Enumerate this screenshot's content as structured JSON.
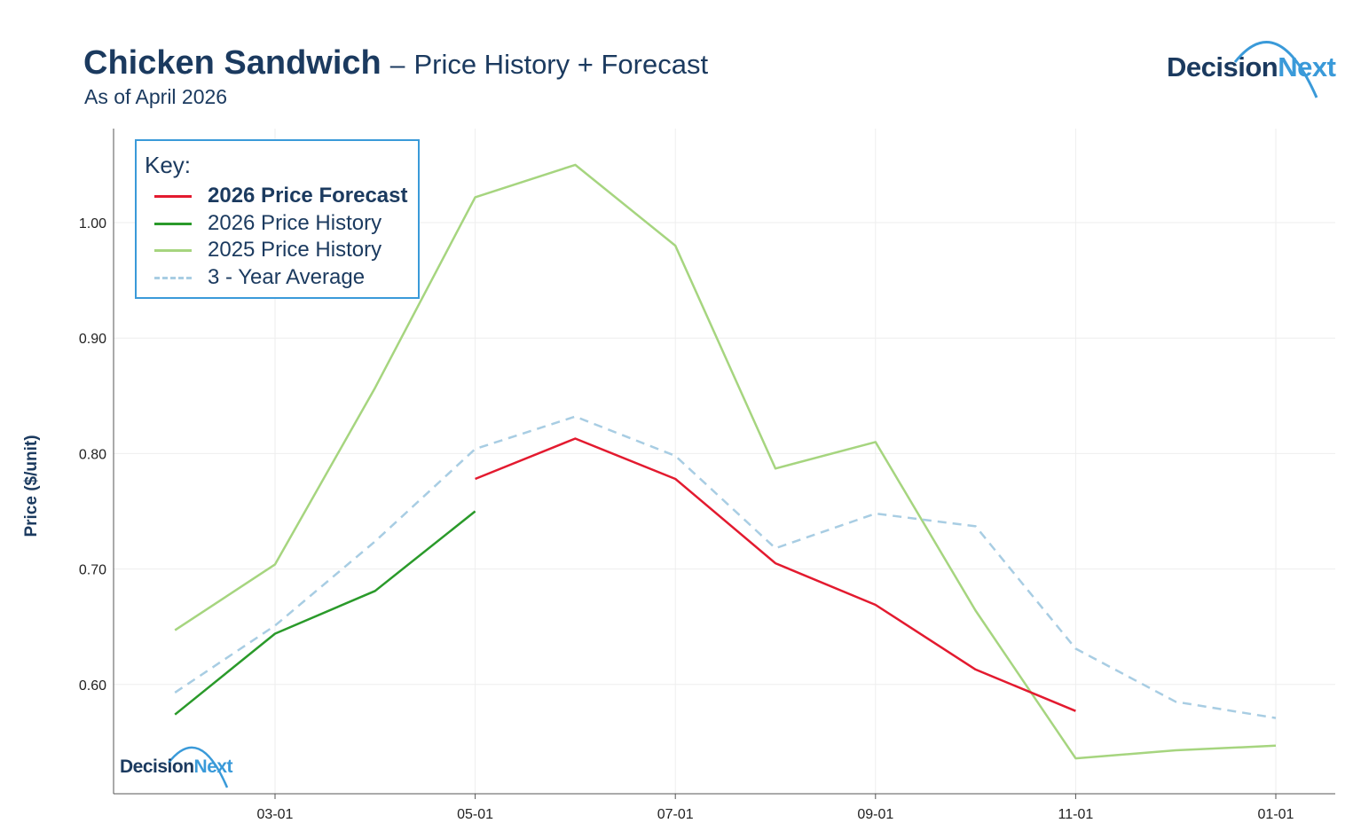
{
  "header": {
    "title_main": "Chicken Sandwich",
    "title_sep": "–",
    "title_sub": "Price History + Forecast",
    "as_of": "As of April 2026"
  },
  "logo": {
    "part1": "Decision",
    "part2": "Next"
  },
  "legend": {
    "title": "Key:",
    "items": [
      {
        "label": "2026 Price Forecast",
        "color": "#e31a2f"
      },
      {
        "label": "2026 Price History",
        "color": "#2a9a2a"
      },
      {
        "label": "2025 Price History",
        "color": "#a6d57f"
      },
      {
        "label": "3 - Year Average",
        "color": "#a8cde3"
      }
    ]
  },
  "chart_data": {
    "type": "line",
    "title": "Chicken Sandwich – Price History + Forecast",
    "subtitle": "As of April 2026",
    "xlabel": "",
    "ylabel": "Price ($/unit)",
    "x_note": "month number, 13 = January of following year",
    "xlim": [
      1.5,
      14.2
    ],
    "ylim": [
      0.505,
      1.08
    ],
    "grid": true,
    "legend_placement": "top-left",
    "x_ticks": [
      {
        "x": 3,
        "label": "03-01"
      },
      {
        "x": 5,
        "label": "05-01"
      },
      {
        "x": 7,
        "label": "07-01"
      },
      {
        "x": 9,
        "label": "09-01"
      },
      {
        "x": 11,
        "label": "11-01"
      },
      {
        "x": 13,
        "label": "01-01"
      }
    ],
    "y_ticks": [
      {
        "y": 0.6,
        "label": "0.60"
      },
      {
        "y": 0.7,
        "label": "0.70"
      },
      {
        "y": 0.8,
        "label": "0.80"
      },
      {
        "y": 0.9,
        "label": "0.90"
      },
      {
        "y": 1.0,
        "label": "1.00"
      }
    ],
    "series": [
      {
        "name": "2025 Price History",
        "color": "#a6d57f",
        "dash": false,
        "width": 2.5,
        "x": [
          2,
          3,
          4,
          5,
          6,
          7,
          8,
          9,
          10,
          11,
          12,
          13
        ],
        "y": [
          0.647,
          0.704,
          0.857,
          1.022,
          1.05,
          0.98,
          0.787,
          0.81,
          0.664,
          0.536,
          0.543,
          0.547
        ]
      },
      {
        "name": "3 - Year Average",
        "color": "#a8cde3",
        "dash": true,
        "width": 2.5,
        "x": [
          2,
          3,
          4,
          5,
          6,
          7,
          8,
          9,
          10,
          11,
          12,
          13
        ],
        "y": [
          0.593,
          0.651,
          0.724,
          0.804,
          0.832,
          0.798,
          0.718,
          0.748,
          0.737,
          0.631,
          0.585,
          0.571
        ]
      },
      {
        "name": "2026 Price History",
        "color": "#2a9a2a",
        "dash": false,
        "width": 2.5,
        "x": [
          2,
          3,
          4,
          5
        ],
        "y": [
          0.574,
          0.644,
          0.681,
          0.75
        ]
      },
      {
        "name": "2026 Price Forecast",
        "color": "#e31a2f",
        "dash": false,
        "width": 2.5,
        "x": [
          5,
          6,
          7,
          8,
          9,
          10,
          11
        ],
        "y": [
          0.778,
          0.813,
          0.778,
          0.705,
          0.669,
          0.613,
          0.577
        ]
      }
    ]
  }
}
